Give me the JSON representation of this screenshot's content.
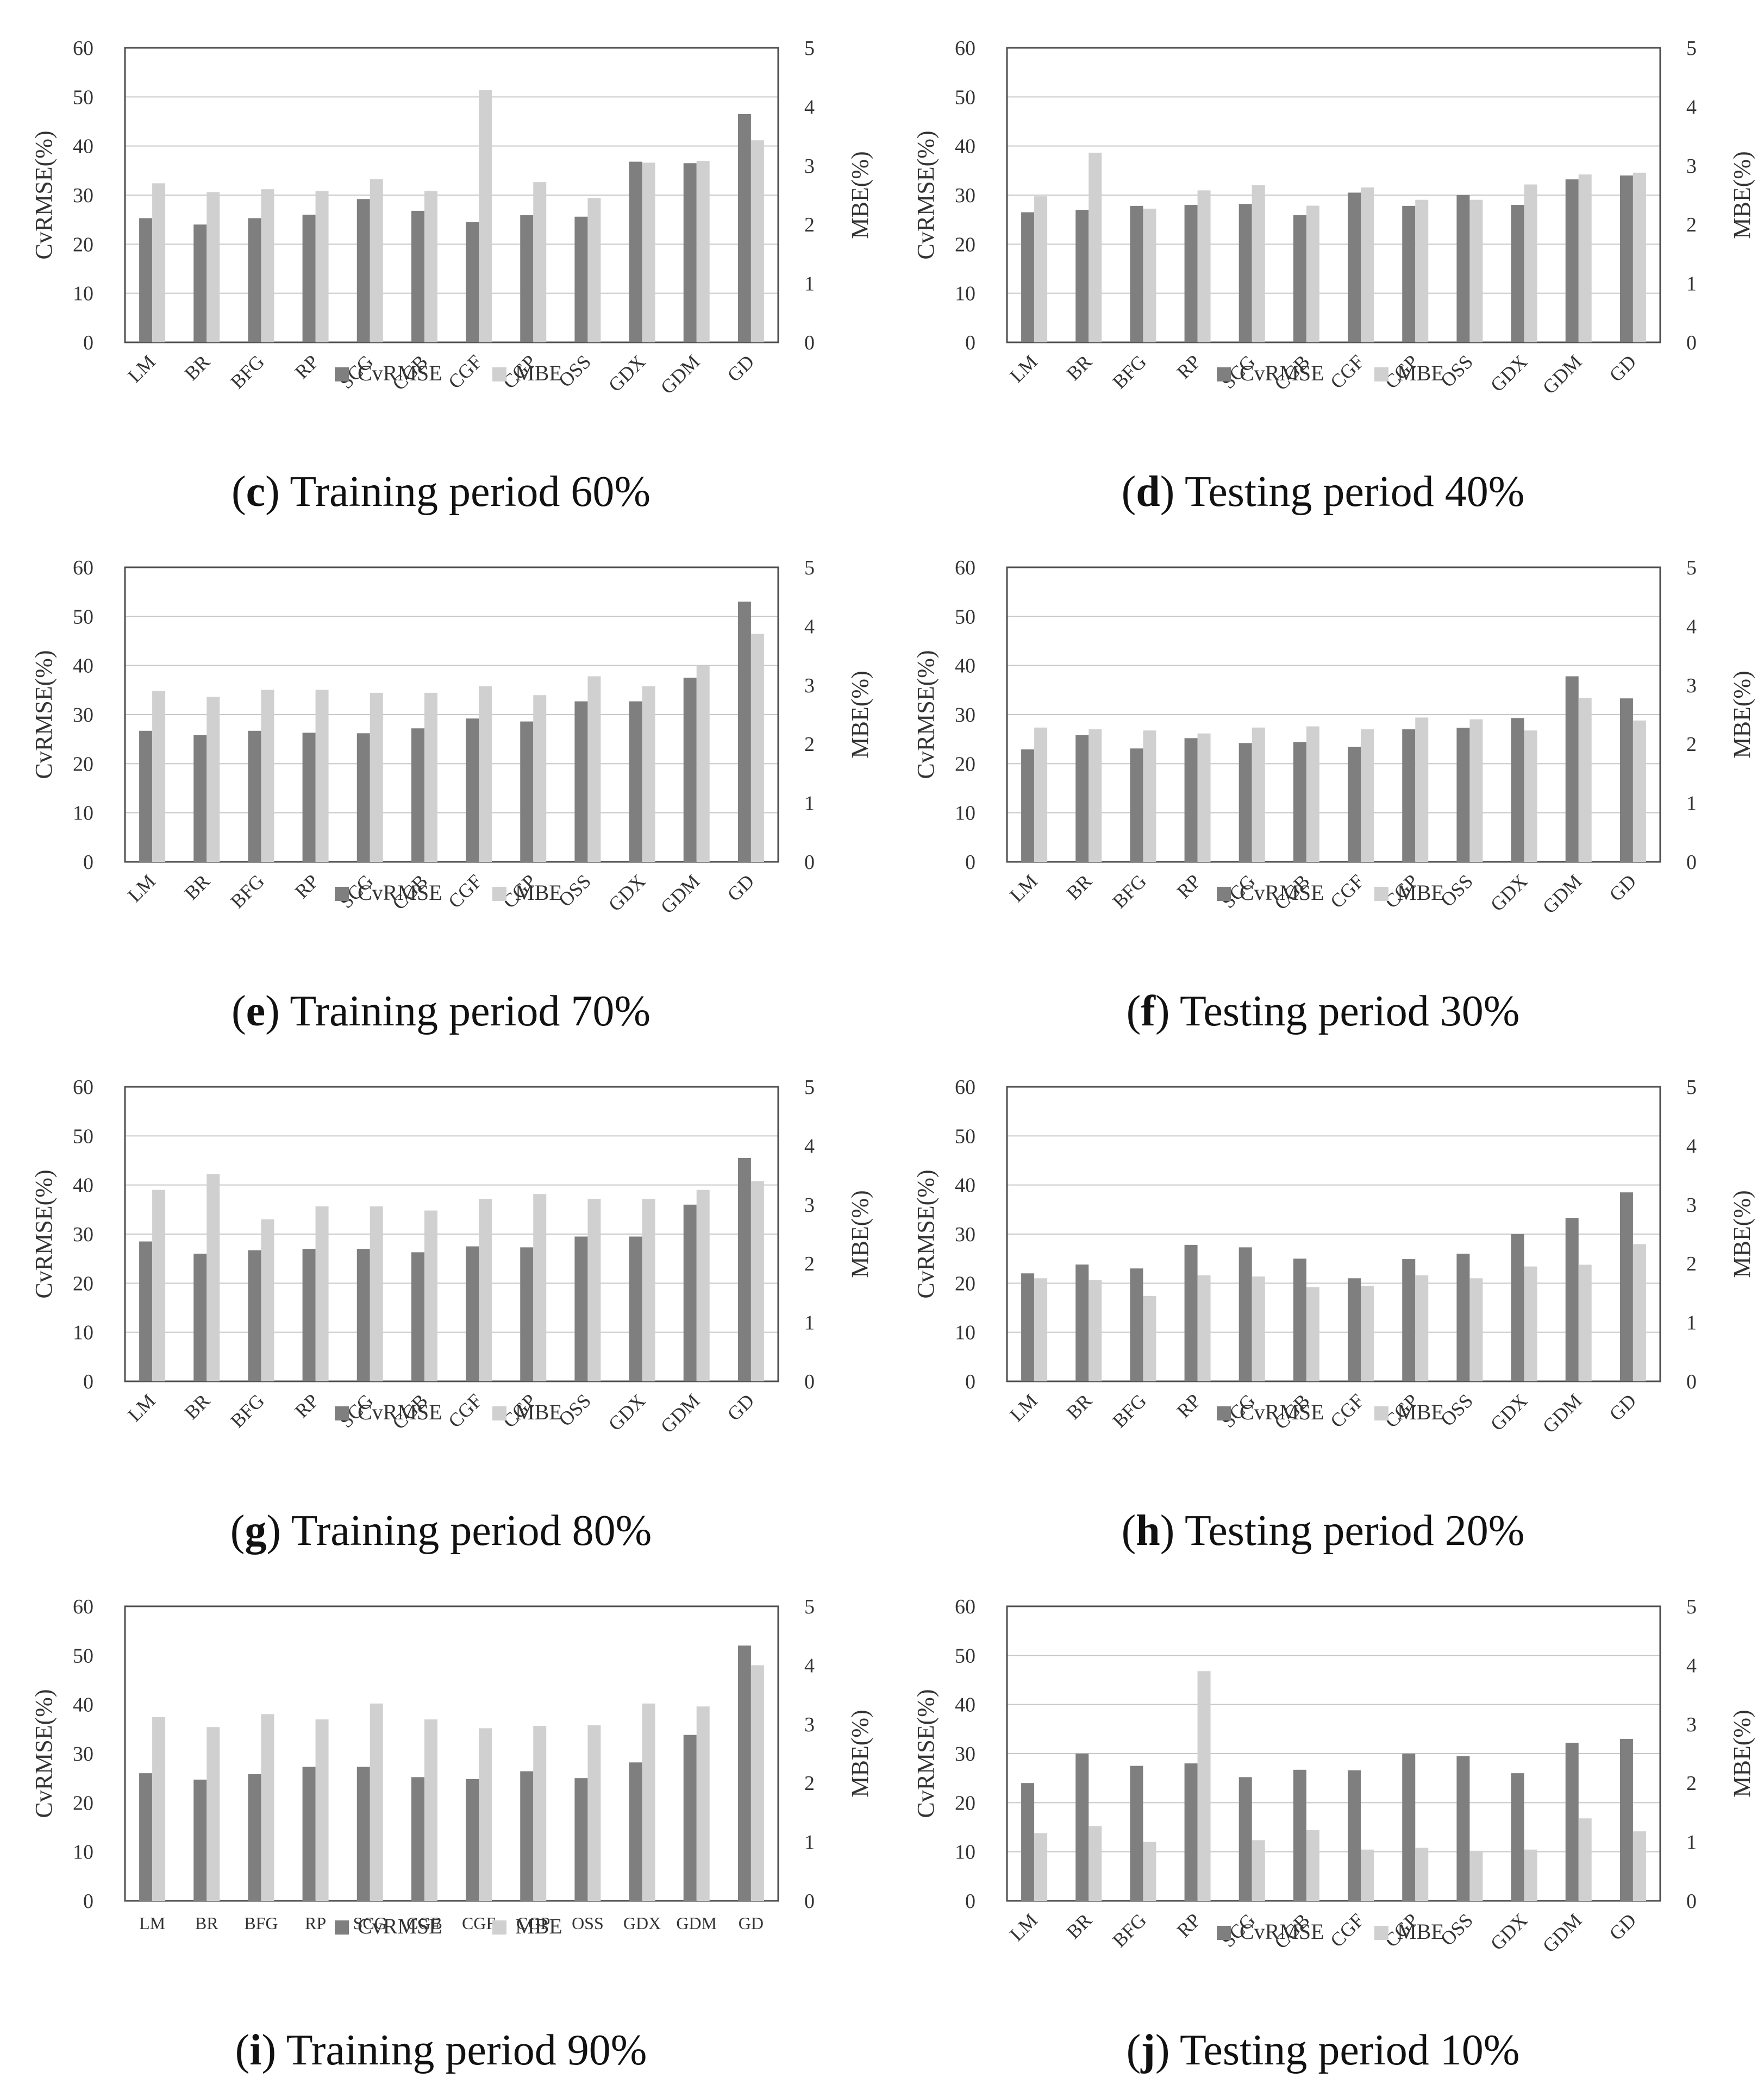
{
  "colors": {
    "cvrmse": "#7f7f7f",
    "mbe": "#d0d0d0",
    "grid": "#c8c8c8",
    "frame": "#4d4d4d"
  },
  "chart_data": [
    {
      "panel_id": "c",
      "caption_letter": "c",
      "caption_text": " Training period 60%",
      "type": "bar",
      "categories": [
        "LM",
        "BR",
        "BFG",
        "RP",
        "SCG",
        "CGB",
        "CGF",
        "CGP",
        "OSS",
        "GDX",
        "GDM",
        "GD"
      ],
      "ylabel": "CvRMSE(%)",
      "y2label": "MBE(%)",
      "ylim": [
        0,
        60
      ],
      "y2lim": [
        0,
        5
      ],
      "yticks": [
        "0",
        "10",
        "20",
        "30",
        "40",
        "50",
        "60"
      ],
      "y2ticks": [
        "0",
        "1",
        "2",
        "3",
        "4",
        "5"
      ],
      "grid": true,
      "legend": "bottom-center",
      "xlabel_style": "rotated",
      "series": [
        {
          "name": "CvRMSE",
          "axis": "left",
          "values": [
            25.3,
            24.0,
            25.3,
            26.0,
            29.2,
            26.8,
            24.5,
            25.9,
            25.6,
            36.8,
            36.5,
            46.5
          ]
        },
        {
          "name": "MBE",
          "axis": "right",
          "values": [
            2.7,
            2.55,
            2.6,
            2.57,
            2.77,
            2.57,
            4.28,
            2.72,
            2.45,
            3.05,
            3.08,
            3.43
          ]
        }
      ]
    },
    {
      "panel_id": "d",
      "caption_letter": "d",
      "caption_text": " Testing period 40%",
      "type": "bar",
      "categories": [
        "LM",
        "BR",
        "BFG",
        "RP",
        "SCG",
        "CGB",
        "CGF",
        "CGP",
        "OSS",
        "GDX",
        "GDM",
        "GD"
      ],
      "ylabel": "CvRMSE(%)",
      "y2label": "MBE(%)",
      "ylim": [
        0,
        60
      ],
      "y2lim": [
        0,
        5
      ],
      "yticks": [
        "0",
        "10",
        "20",
        "30",
        "40",
        "50",
        "60"
      ],
      "y2ticks": [
        "0",
        "1",
        "2",
        "3",
        "4",
        "5"
      ],
      "grid": true,
      "legend": "bottom-center",
      "xlabel_style": "rotated",
      "series": [
        {
          "name": "CvRMSE",
          "axis": "left",
          "values": [
            26.5,
            27.0,
            27.8,
            28.0,
            28.2,
            25.9,
            30.5,
            27.8,
            30.0,
            28.0,
            33.2,
            34.0
          ]
        },
        {
          "name": "MBE",
          "axis": "right",
          "values": [
            2.48,
            3.22,
            2.27,
            2.58,
            2.67,
            2.32,
            2.63,
            2.42,
            2.42,
            2.68,
            2.85,
            2.88
          ]
        }
      ]
    },
    {
      "panel_id": "e",
      "caption_letter": "e",
      "caption_text": " Training period 70%",
      "type": "bar",
      "categories": [
        "LM",
        "BR",
        "BFG",
        "RP",
        "SCG",
        "CGB",
        "CGF",
        "CGP",
        "OSS",
        "GDX",
        "GDM",
        "GD"
      ],
      "ylabel": "CvRMSE(%)",
      "y2label": "MBE(%)",
      "ylim": [
        0,
        60
      ],
      "y2lim": [
        0,
        5
      ],
      "yticks": [
        "0",
        "10",
        "20",
        "30",
        "40",
        "50",
        "60"
      ],
      "y2ticks": [
        "0",
        "1",
        "2",
        "3",
        "4",
        "5"
      ],
      "grid": true,
      "legend": "bottom-center",
      "xlabel_style": "rotated",
      "series": [
        {
          "name": "CvRMSE",
          "axis": "left",
          "values": [
            26.7,
            25.8,
            26.7,
            26.3,
            26.2,
            27.2,
            29.2,
            28.6,
            32.7,
            32.7,
            37.5,
            53.0
          ]
        },
        {
          "name": "MBE",
          "axis": "right",
          "values": [
            2.9,
            2.8,
            2.92,
            2.92,
            2.87,
            2.87,
            2.98,
            2.83,
            3.15,
            2.98,
            3.33,
            3.87
          ]
        }
      ]
    },
    {
      "panel_id": "f",
      "caption_letter": "f",
      "caption_text": " Testing period 30%",
      "type": "bar",
      "categories": [
        "LM",
        "BR",
        "BFG",
        "RP",
        "SCG",
        "CGB",
        "CGF",
        "CGP",
        "OSS",
        "GDX",
        "GDM",
        "GD"
      ],
      "ylabel": "CvRMSE(%)",
      "y2label": "MBE(%)",
      "ylim": [
        0,
        60
      ],
      "y2lim": [
        0,
        5
      ],
      "yticks": [
        "0",
        "10",
        "20",
        "30",
        "40",
        "50",
        "60"
      ],
      "y2ticks": [
        "0",
        "1",
        "2",
        "3",
        "4",
        "5"
      ],
      "grid": true,
      "legend": "bottom-center",
      "xlabel_style": "rotated",
      "series": [
        {
          "name": "CvRMSE",
          "axis": "left",
          "values": [
            22.9,
            25.8,
            23.1,
            25.2,
            24.2,
            24.4,
            23.4,
            27.0,
            27.3,
            29.3,
            37.8,
            33.3
          ]
        },
        {
          "name": "MBE",
          "axis": "right",
          "values": [
            2.28,
            2.25,
            2.23,
            2.18,
            2.28,
            2.3,
            2.25,
            2.45,
            2.42,
            2.23,
            2.78,
            2.4
          ]
        }
      ]
    },
    {
      "panel_id": "g",
      "caption_letter": "g",
      "caption_text": " Training period 80%",
      "type": "bar",
      "categories": [
        "LM",
        "BR",
        "BFG",
        "RP",
        "SCG",
        "CGB",
        "CGF",
        "CGP",
        "OSS",
        "GDX",
        "GDM",
        "GD"
      ],
      "ylabel": "CvRMSE(%)",
      "y2label": "MBE(%)",
      "ylim": [
        0,
        60
      ],
      "y2lim": [
        0,
        5
      ],
      "yticks": [
        "0",
        "10",
        "20",
        "30",
        "40",
        "50",
        "60"
      ],
      "y2ticks": [
        "0",
        "1",
        "2",
        "3",
        "4",
        "5"
      ],
      "grid": true,
      "legend": "bottom-center",
      "xlabel_style": "rotated",
      "series": [
        {
          "name": "CvRMSE",
          "axis": "left",
          "values": [
            28.5,
            26.0,
            26.7,
            27.0,
            27.0,
            26.3,
            27.5,
            27.3,
            29.5,
            29.5,
            36.0,
            45.5
          ]
        },
        {
          "name": "MBE",
          "axis": "right",
          "values": [
            3.25,
            3.52,
            2.75,
            2.97,
            2.97,
            2.9,
            3.1,
            3.18,
            3.1,
            3.1,
            3.25,
            3.4
          ]
        }
      ]
    },
    {
      "panel_id": "h",
      "caption_letter": "h",
      "caption_text": " Testing period 20%",
      "type": "bar",
      "categories": [
        "LM",
        "BR",
        "BFG",
        "RP",
        "SCG",
        "CGB",
        "CGF",
        "CGP",
        "OSS",
        "GDX",
        "GDM",
        "GD"
      ],
      "ylabel": "CvRMSE(%)",
      "y2label": "MBE(%)",
      "ylim": [
        0,
        60
      ],
      "y2lim": [
        0,
        5
      ],
      "yticks": [
        "0",
        "10",
        "20",
        "30",
        "40",
        "50",
        "60"
      ],
      "y2ticks": [
        "0",
        "1",
        "2",
        "3",
        "4",
        "5"
      ],
      "grid": true,
      "legend": "bottom-center",
      "xlabel_style": "rotated",
      "series": [
        {
          "name": "CvRMSE",
          "axis": "left",
          "values": [
            22.0,
            23.8,
            23.0,
            27.8,
            27.3,
            25.0,
            21.0,
            24.9,
            26.0,
            30.0,
            33.3,
            38.5
          ]
        },
        {
          "name": "MBE",
          "axis": "right",
          "values": [
            1.75,
            1.72,
            1.45,
            1.8,
            1.78,
            1.6,
            1.62,
            1.8,
            1.75,
            1.95,
            1.98,
            2.33
          ]
        }
      ]
    },
    {
      "panel_id": "i",
      "caption_letter": "i",
      "caption_text": " Training period 90%",
      "type": "bar",
      "categories": [
        "LM",
        "BR",
        "BFG",
        "RP",
        "SCG",
        "CGB",
        "CGF",
        "CGP",
        "OSS",
        "GDX",
        "GDM",
        "GD"
      ],
      "ylabel": "CvRMSE(%)",
      "y2label": "MBE(%)",
      "ylim": [
        0,
        60
      ],
      "y2lim": [
        0,
        5
      ],
      "yticks": [
        "0",
        "10",
        "20",
        "30",
        "40",
        "50",
        "60"
      ],
      "y2ticks": [
        "0",
        "1",
        "2",
        "3",
        "4",
        "5"
      ],
      "grid": false,
      "legend": "bottom-center",
      "xlabel_style": "horizontal",
      "series": [
        {
          "name": "CvRMSE",
          "axis": "left",
          "values": [
            26.0,
            24.7,
            25.8,
            27.3,
            27.3,
            25.2,
            24.8,
            26.4,
            25.0,
            28.2,
            33.8,
            52.0
          ]
        },
        {
          "name": "MBE",
          "axis": "right",
          "values": [
            3.12,
            2.95,
            3.17,
            3.08,
            3.35,
            3.08,
            2.93,
            2.97,
            2.98,
            3.35,
            3.3,
            4.0
          ]
        }
      ]
    },
    {
      "panel_id": "j",
      "caption_letter": "j",
      "caption_text": " Testing period 10%",
      "type": "bar",
      "categories": [
        "LM",
        "BR",
        "BFG",
        "RP",
        "SCG",
        "CGB",
        "CGF",
        "CGP",
        "OSS",
        "GDX",
        "GDM",
        "GD"
      ],
      "ylabel": "CvRMSE(%)",
      "y2label": "MBE(%)",
      "ylim": [
        0,
        60
      ],
      "y2lim": [
        0,
        5
      ],
      "yticks": [
        "0",
        "10",
        "20",
        "30",
        "40",
        "50",
        "60"
      ],
      "y2ticks": [
        "0",
        "1",
        "2",
        "3",
        "4",
        "5"
      ],
      "grid": true,
      "legend": "bottom-center",
      "xlabel_style": "rotated",
      "series": [
        {
          "name": "CvRMSE",
          "axis": "left",
          "values": [
            24.0,
            30.0,
            27.5,
            28.0,
            25.2,
            26.7,
            26.6,
            30.0,
            29.5,
            26.0,
            32.2,
            33.0
          ]
        },
        {
          "name": "MBE",
          "axis": "right",
          "values": [
            1.15,
            1.27,
            1.0,
            3.9,
            1.03,
            1.2,
            0.87,
            0.9,
            0.85,
            0.87,
            1.4,
            1.18
          ]
        }
      ]
    }
  ]
}
